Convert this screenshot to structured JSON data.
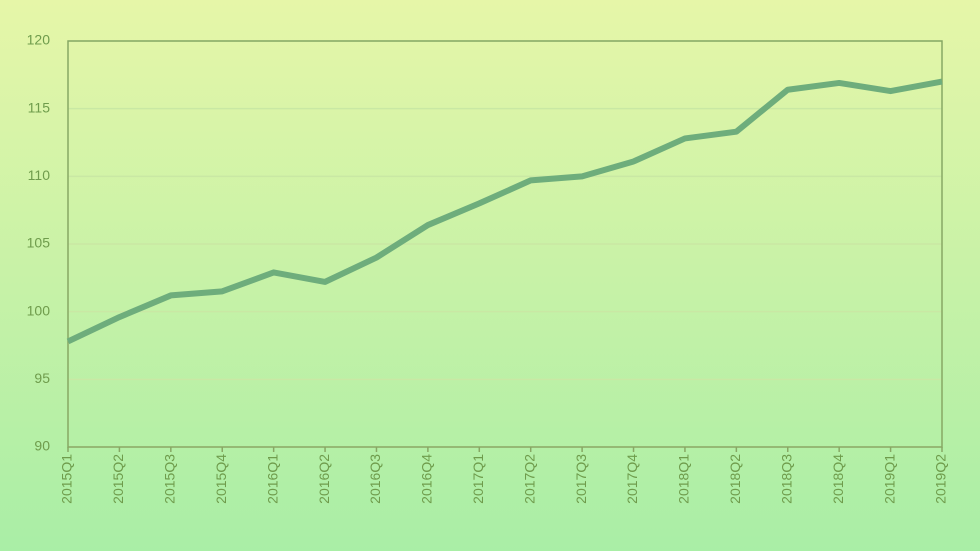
{
  "chart_data": {
    "type": "line",
    "categories": [
      "2015Q1",
      "2015Q2",
      "2015Q3",
      "2015Q4",
      "2016Q1",
      "2016Q2",
      "2016Q3",
      "2016Q4",
      "2017Q1",
      "2017Q2",
      "2017Q3",
      "2017Q4",
      "2018Q1",
      "2018Q2",
      "2018Q3",
      "2018Q4",
      "2019Q1",
      "2019Q2"
    ],
    "values": [
      97.8,
      99.6,
      101.2,
      101.5,
      102.9,
      102.2,
      104.0,
      106.4,
      108.0,
      109.7,
      110.0,
      111.1,
      112.8,
      113.3,
      116.4,
      116.9,
      116.3,
      117.0
    ],
    "color": "#6ead7c",
    "ylim": [
      90,
      120
    ],
    "yticks": [
      90,
      95,
      100,
      105,
      110,
      115,
      120
    ],
    "grid": true
  }
}
